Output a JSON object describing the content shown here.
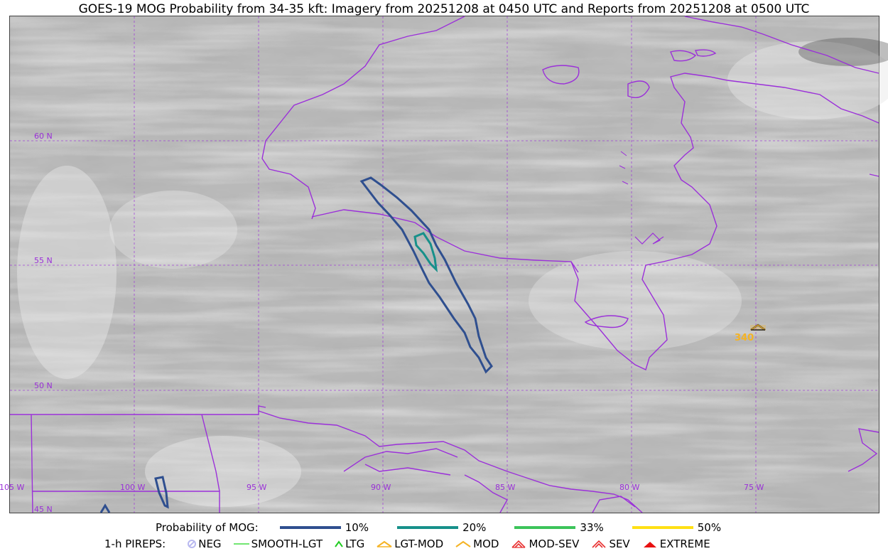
{
  "title": "GOES-19 MOG Probability from 34-35 kft: Imagery from 20251208 at 0450 UTC and Reports from 20251208 at 0500 UTC",
  "map": {
    "lat_labels": [
      "60 N",
      "55 N",
      "50 N",
      "45 N"
    ],
    "lon_labels": [
      "105 W",
      "100 W",
      "95 W",
      "90 W",
      "85 W",
      "80 W",
      "75 W"
    ],
    "report_marker_label": "340",
    "colors": {
      "coastline": "#9b30d9",
      "grid": "#9b30d9",
      "prob_10": "#2f4f8f",
      "prob_20": "#17908a",
      "prob_33": "#3cc45a",
      "prob_50": "#ffe014",
      "report": "#f5b324"
    }
  },
  "legend": {
    "mog_title": "Probability of MOG:",
    "mog_items": [
      {
        "label": "10%",
        "color": "#2f4f8f"
      },
      {
        "label": "20%",
        "color": "#17908a"
      },
      {
        "label": "33%",
        "color": "#3cc45a"
      },
      {
        "label": "50%",
        "color": "#ffe014"
      }
    ],
    "pireps_title": "1-h PIREPS:",
    "pirep_items": [
      {
        "label": "NEG",
        "icon": "neg-icon",
        "color": "#b9b9f0"
      },
      {
        "label": "SMOOTH-LGT",
        "icon": "smooth-lgt-line-icon",
        "color": "#44dd44"
      },
      {
        "label": "LTG",
        "icon": "ltg-caret-icon",
        "color": "#22cc22"
      },
      {
        "label": "LGT-MOD",
        "icon": "lgt-mod-icon",
        "color": "#f5b324"
      },
      {
        "label": "MOD",
        "icon": "mod-caret-icon",
        "color": "#f5b324"
      },
      {
        "label": "MOD-SEV",
        "icon": "mod-sev-icon",
        "color": "#e83030"
      },
      {
        "label": "SEV",
        "icon": "sev-icon",
        "color": "#e83030"
      },
      {
        "label": "EXTREME",
        "icon": "extreme-icon",
        "color": "#e81010"
      }
    ]
  }
}
